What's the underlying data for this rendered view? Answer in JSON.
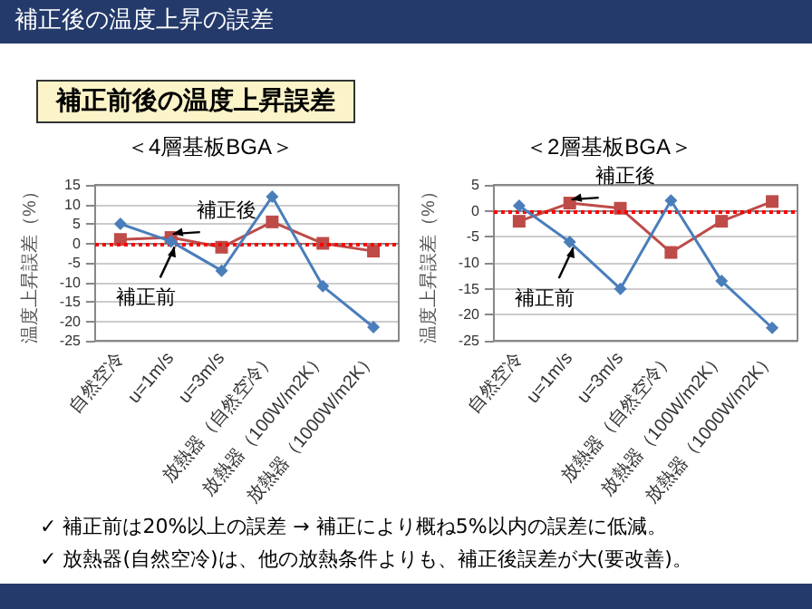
{
  "chart_data": [
    {
      "type": "other",
      "title": "補正後の温度上昇の誤差",
      "subtitle": "補正前後の温度上昇誤差",
      "annotations": [
        "✓ 補正前は20%以上の誤差 → 補正により概ね5%以内の誤差に低減。",
        "✓ 放熱器(自然空冷)は、他の放熱条件よりも、補正後誤差が大(要改善)。"
      ]
    },
    {
      "type": "line",
      "title": "＜4層基板BGA＞",
      "ylabel": "温度上昇誤差（%）",
      "categories": [
        "自然空冷",
        "u=1m/s",
        "u=3m/s",
        "放熱器（自然空冷）",
        "放熱器（100W/m2K）",
        "放熱器（1000W/m2K）"
      ],
      "series": [
        {
          "color": "#4a7ebb",
          "marker": "diamond",
          "values": [
            5,
            0.5,
            -7,
            12,
            -11,
            -21.5
          ]
        },
        {
          "color": "#be4b48",
          "marker": "square",
          "values": [
            1,
            1.5,
            -1,
            5.5,
            0,
            -2
          ]
        }
      ],
      "ylim": [
        -25,
        15
      ],
      "yticks": [
        -25,
        -20,
        -15,
        -10,
        -5,
        0,
        5,
        10,
        15
      ],
      "grid": "y",
      "ref_lines": [
        {
          "axis": "y",
          "value": 0,
          "color": "#ff0000",
          "line_style": "dotted"
        }
      ],
      "annotations": [
        {
          "text": "補正後",
          "x": "u=1m/s",
          "y": 1.5
        },
        {
          "text": "補正前",
          "x": "u=1m/s",
          "y": 0.5
        }
      ]
    },
    {
      "type": "line",
      "title": "＜2層基板BGA＞",
      "ylabel": "温度上昇誤差（%）",
      "categories": [
        "自然空冷",
        "u=1m/s",
        "u=3m/s",
        "放熱器（自然空冷）",
        "放熱器（100W/m2K）",
        "放熱器（1000W/m2K）"
      ],
      "series": [
        {
          "color": "#4a7ebb",
          "marker": "diamond",
          "values": [
            1,
            -6,
            -15,
            2,
            -13.5,
            -22.5
          ]
        },
        {
          "color": "#be4b48",
          "marker": "square",
          "values": [
            -2,
            1.5,
            0.5,
            -8,
            -2,
            1.8
          ]
        }
      ],
      "ylim": [
        -25,
        5
      ],
      "yticks": [
        -25,
        -20,
        -15,
        -10,
        -5,
        0,
        5
      ],
      "grid": "y",
      "ref_lines": [
        {
          "axis": "y",
          "value": 0,
          "color": "#ff0000",
          "line_style": "dotted"
        }
      ],
      "annotations": [
        {
          "text": "補正後",
          "x": "u=1m/s",
          "y": 1.5
        },
        {
          "text": "補正前",
          "x": "u=1m/s",
          "y": -6
        }
      ]
    }
  ]
}
